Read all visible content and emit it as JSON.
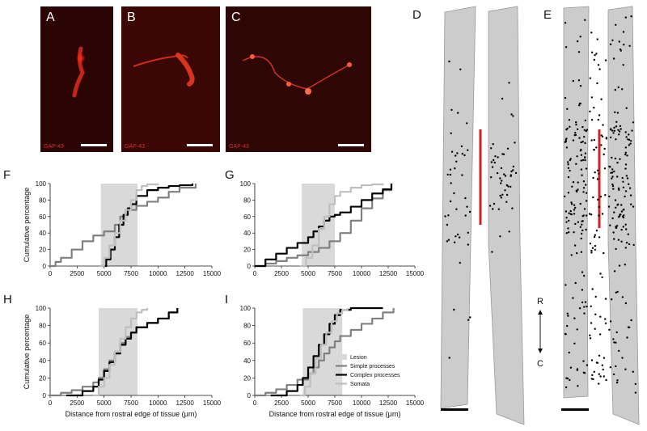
{
  "micrographs": [
    {
      "letter": "A",
      "stain": "GAP-43"
    },
    {
      "letter": "B",
      "stain": "GAP-43"
    },
    {
      "letter": "C",
      "stain": "GAP-43"
    }
  ],
  "maps": [
    {
      "letter": "D"
    },
    {
      "letter": "E"
    }
  ],
  "axis_labels": {
    "rostral": "R",
    "caudal": "C"
  },
  "colors": {
    "lesion": "#d9d9d9",
    "simple": "#808080",
    "complex": "#000000",
    "somata": "#bfbfbf",
    "scale_bar": "#d42020",
    "tissue": "#cccccc"
  },
  "chart_data": [
    {
      "panel": "F",
      "type": "line",
      "ylabel": "Cumulative percentage",
      "xlabel": "",
      "xlim": [
        0,
        15000
      ],
      "ylim": [
        0,
        100
      ],
      "xticks": [
        "0",
        "2500",
        "5000",
        "7500",
        "10000",
        "12500",
        "15000"
      ],
      "yticks": [
        "0",
        "20",
        "40",
        "60",
        "80",
        "100"
      ],
      "lesion": [
        4700,
        8100
      ],
      "series": [
        {
          "key": "simple",
          "x": [
            0,
            500,
            1000,
            2000,
            3000,
            4000,
            5000,
            6000,
            6500,
            7000,
            8000,
            9000,
            10000,
            11000,
            12000,
            13500
          ],
          "y": [
            0,
            5,
            10,
            20,
            30,
            37,
            42,
            50,
            60,
            68,
            73,
            78,
            83,
            90,
            95,
            100
          ]
        },
        {
          "key": "complex",
          "x": [
            4700,
            5200,
            5600,
            6000,
            6400,
            6800,
            7200,
            7500,
            8000,
            9000,
            10000,
            11000,
            12000,
            13200
          ],
          "y": [
            0,
            8,
            20,
            35,
            50,
            62,
            70,
            75,
            85,
            92,
            95,
            97,
            98,
            100
          ]
        },
        {
          "key": "somata",
          "x": [
            4600,
            5000,
            5500,
            6000,
            6500,
            7000,
            7500,
            8000,
            8500,
            9000,
            10000
          ],
          "y": [
            0,
            10,
            25,
            40,
            55,
            68,
            80,
            92,
            97,
            99,
            100
          ]
        }
      ]
    },
    {
      "panel": "G",
      "type": "line",
      "ylabel": "",
      "xlabel": "",
      "xlim": [
        0,
        15000
      ],
      "ylim": [
        0,
        100
      ],
      "xticks": [
        "0",
        "2500",
        "5000",
        "7500",
        "10000",
        "12500",
        "15000"
      ],
      "yticks": [
        "0",
        "20",
        "40",
        "60",
        "80",
        "100"
      ],
      "lesion": [
        4400,
        7500
      ],
      "series": [
        {
          "key": "simple",
          "x": [
            0,
            1000,
            2000,
            3000,
            4000,
            5000,
            6000,
            7000,
            8000,
            9000,
            10000,
            11000,
            12000,
            12800
          ],
          "y": [
            0,
            3,
            6,
            10,
            13,
            17,
            22,
            30,
            40,
            55,
            70,
            82,
            92,
            100
          ]
        },
        {
          "key": "complex",
          "x": [
            0,
            1000,
            2000,
            3000,
            4000,
            5000,
            5500,
            6000,
            6500,
            7000,
            7500,
            8000,
            9000,
            10000,
            11000,
            12000,
            12800
          ],
          "y": [
            0,
            8,
            15,
            22,
            28,
            35,
            42,
            48,
            55,
            60,
            62,
            65,
            72,
            80,
            88,
            93,
            100
          ]
        },
        {
          "key": "somata",
          "x": [
            4200,
            4800,
            5400,
            6000,
            6500,
            7000,
            7500,
            8000,
            9000,
            10000,
            11000,
            12000
          ],
          "y": [
            0,
            10,
            25,
            45,
            60,
            75,
            85,
            90,
            95,
            98,
            99,
            100
          ]
        }
      ]
    },
    {
      "panel": "H",
      "type": "line",
      "ylabel": "Cumulative percentage",
      "xlabel": "Distance from rostral edge of tissue (μm)",
      "xlim": [
        0,
        15000
      ],
      "ylim": [
        0,
        100
      ],
      "xticks": [
        "0",
        "2500",
        "5000",
        "7500",
        "10000",
        "12500",
        "15000"
      ],
      "yticks": [
        "0",
        "20",
        "40",
        "60",
        "80",
        "100"
      ],
      "lesion": [
        4500,
        8100
      ],
      "series": [
        {
          "key": "simple",
          "x": [
            0,
            1000,
            2000,
            3000,
            4000,
            4500,
            5000,
            5500,
            6000,
            6500,
            7000,
            7500,
            8000,
            9000,
            10000,
            11000,
            11800
          ],
          "y": [
            0,
            3,
            6,
            10,
            15,
            20,
            30,
            40,
            50,
            60,
            67,
            72,
            78,
            83,
            88,
            95,
            100
          ]
        },
        {
          "key": "complex",
          "x": [
            1500,
            3000,
            4000,
            4500,
            5000,
            5500,
            6000,
            6500,
            7000,
            7500,
            8000,
            9000,
            10000,
            11000,
            11800
          ],
          "y": [
            0,
            5,
            10,
            18,
            28,
            38,
            48,
            58,
            65,
            72,
            78,
            83,
            88,
            95,
            100
          ]
        },
        {
          "key": "somata",
          "x": [
            4000,
            4500,
            5000,
            5500,
            6000,
            6500,
            7000,
            7500,
            8000,
            8500,
            9000
          ],
          "y": [
            0,
            10,
            20,
            35,
            50,
            65,
            78,
            88,
            95,
            98,
            100
          ]
        }
      ]
    },
    {
      "panel": "I",
      "type": "line",
      "ylabel": "",
      "xlabel": "Distance from rostral edge of tissue (μm)",
      "xlim": [
        0,
        15000
      ],
      "ylim": [
        0,
        100
      ],
      "xticks": [
        "0",
        "2500",
        "5000",
        "7500",
        "10000",
        "12500",
        "15000"
      ],
      "yticks": [
        "0",
        "20",
        "40",
        "60",
        "80",
        "100"
      ],
      "lesion": [
        4500,
        8200
      ],
      "legend": {
        "lesion": "Lesion",
        "simple": "Simple processes",
        "complex": "Complex processes",
        "somata": "Somata",
        "placement": "bottom-right"
      },
      "series": [
        {
          "key": "simple",
          "x": [
            0,
            1000,
            2000,
            3000,
            4000,
            5000,
            5500,
            6000,
            6500,
            7000,
            7500,
            8000,
            9000,
            10000,
            11000,
            12000,
            13000
          ],
          "y": [
            0,
            3,
            7,
            12,
            18,
            25,
            32,
            40,
            48,
            55,
            62,
            68,
            75,
            82,
            88,
            95,
            100
          ]
        },
        {
          "key": "complex",
          "x": [
            1500,
            3000,
            4000,
            4500,
            5000,
            5500,
            6000,
            6500,
            7000,
            7500,
            8000,
            9000,
            10000,
            11000,
            12000
          ],
          "y": [
            0,
            5,
            12,
            20,
            32,
            45,
            58,
            70,
            82,
            92,
            98,
            100,
            100,
            100,
            100
          ]
        },
        {
          "key": "somata",
          "x": [
            4200,
            4700,
            5200,
            5700,
            6200,
            6700,
            7200,
            7700,
            8200,
            8700
          ],
          "y": [
            0,
            10,
            25,
            42,
            58,
            72,
            85,
            94,
            98,
            100
          ]
        }
      ]
    }
  ]
}
